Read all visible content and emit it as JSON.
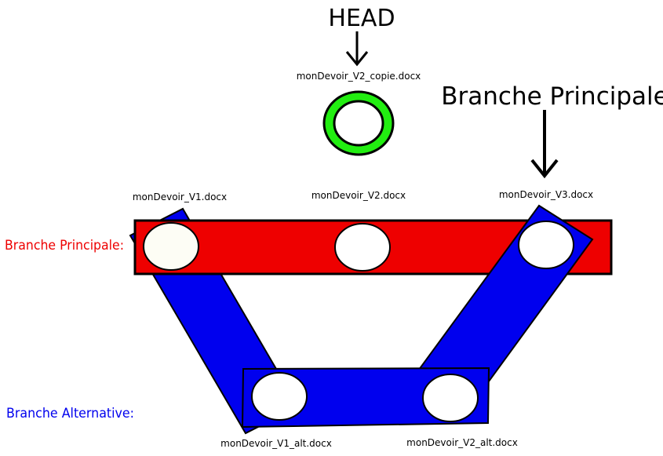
{
  "head": {
    "label": "HEAD"
  },
  "head_commit": {
    "filename": "monDevoir_V2_copie.docx",
    "ring_color": "#22ee11"
  },
  "branch_pointer": {
    "label": "Branche Principale"
  },
  "main_branch": {
    "label": "Branche Principale:",
    "color": "#ee0000",
    "commits": [
      "monDevoir_V1.docx",
      "monDevoir_V2.docx",
      "monDevoir_V3.docx"
    ]
  },
  "alt_branch": {
    "label": "Branche Alternative:",
    "color": "#0000ee",
    "commits": [
      "monDevoir_V1_alt.docx",
      "monDevoir_V2_alt.docx"
    ]
  }
}
